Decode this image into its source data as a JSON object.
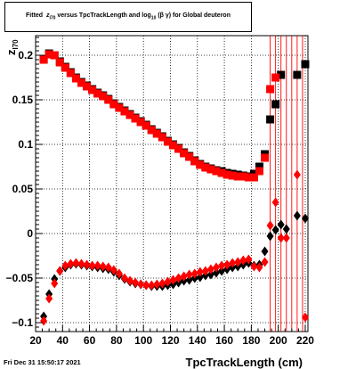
{
  "title_parts": {
    "prefix": "Fitted",
    "z_symbol": "z",
    "z_sub": "I70",
    "middle": "versus TpcTrackLength and log",
    "log_sub": "10",
    "suffix": "(β γ) for Global deuteron"
  },
  "footer": {
    "date": "Fri Dec 31 15:50:17 2021"
  },
  "chart_data": {
    "type": "scatter",
    "title": "Fitted z_I70 versus TpcTrackLength and log10(β γ) for Global deuteron",
    "xlabel": "TpcTrackLength (cm)",
    "ylabel": "z",
    "ylabel_sub": "I70",
    "xlim": [
      20,
      222
    ],
    "ylim": [
      -0.11,
      0.222
    ],
    "x_ticks": [
      20,
      40,
      60,
      80,
      100,
      120,
      140,
      160,
      180,
      200,
      220
    ],
    "y_ticks": [
      -0.1,
      -0.05,
      0,
      0.05,
      0.1,
      0.15,
      0.2
    ],
    "y_tick_labels": [
      "−0.1",
      "−0.05",
      "0",
      "0.05",
      "0.1",
      "0.15",
      "0.2"
    ],
    "grid": true,
    "grid_style": "dotted",
    "colors": {
      "series_black": "#000000",
      "series_red": "#ff0000"
    },
    "series": [
      {
        "marker": "square",
        "color": "#000000",
        "points": [
          [
            26,
            0.196
          ],
          [
            30,
            0.202
          ],
          [
            34,
            0.2
          ],
          [
            38,
            0.193
          ],
          [
            42,
            0.187
          ],
          [
            46,
            0.181
          ],
          [
            50,
            0.175
          ],
          [
            54,
            0.17
          ],
          [
            58,
            0.166
          ],
          [
            62,
            0.162
          ],
          [
            66,
            0.158
          ],
          [
            70,
            0.155
          ],
          [
            74,
            0.151
          ],
          [
            78,
            0.146
          ],
          [
            82,
            0.142
          ],
          [
            86,
            0.138
          ],
          [
            90,
            0.134
          ],
          [
            94,
            0.13
          ],
          [
            98,
            0.126
          ],
          [
            102,
            0.122
          ],
          [
            106,
            0.117
          ],
          [
            110,
            0.113
          ],
          [
            114,
            0.109
          ],
          [
            118,
            0.104
          ],
          [
            122,
            0.1
          ],
          [
            126,
            0.096
          ],
          [
            130,
            0.091
          ],
          [
            134,
            0.087
          ],
          [
            138,
            0.082
          ],
          [
            142,
            0.078
          ],
          [
            146,
            0.075
          ],
          [
            150,
            0.073
          ],
          [
            154,
            0.071
          ],
          [
            158,
            0.07
          ],
          [
            162,
            0.068
          ],
          [
            166,
            0.067
          ],
          [
            170,
            0.066
          ],
          [
            174,
            0.065
          ],
          [
            178,
            0.064
          ],
          [
            182,
            0.067
          ],
          [
            186,
            0.075
          ],
          [
            190,
            0.089
          ],
          [
            194,
            0.128
          ],
          [
            198,
            0.145
          ],
          [
            202,
            0.178
          ],
          [
            214,
            0.178
          ],
          [
            220,
            0.19
          ]
        ]
      },
      {
        "marker": "square",
        "color": "#ff0000",
        "points": [
          [
            26,
            0.195
          ],
          [
            30,
            0.201
          ],
          [
            34,
            0.2
          ],
          [
            38,
            0.192
          ],
          [
            42,
            0.186
          ],
          [
            46,
            0.18
          ],
          [
            50,
            0.174
          ],
          [
            54,
            0.169
          ],
          [
            58,
            0.165
          ],
          [
            62,
            0.161
          ],
          [
            66,
            0.157
          ],
          [
            70,
            0.154
          ],
          [
            74,
            0.15
          ],
          [
            78,
            0.145
          ],
          [
            82,
            0.141
          ],
          [
            86,
            0.137
          ],
          [
            90,
            0.133
          ],
          [
            94,
            0.129
          ],
          [
            98,
            0.125
          ],
          [
            102,
            0.121
          ],
          [
            106,
            0.116
          ],
          [
            110,
            0.112
          ],
          [
            114,
            0.108
          ],
          [
            118,
            0.103
          ],
          [
            122,
            0.099
          ],
          [
            126,
            0.095
          ],
          [
            130,
            0.09
          ],
          [
            134,
            0.086
          ],
          [
            138,
            0.081
          ],
          [
            142,
            0.077
          ],
          [
            146,
            0.074
          ],
          [
            150,
            0.072
          ],
          [
            154,
            0.07
          ],
          [
            158,
            0.068
          ],
          [
            162,
            0.066
          ],
          [
            166,
            0.065
          ],
          [
            170,
            0.064
          ],
          [
            174,
            0.064
          ],
          [
            178,
            0.063
          ],
          [
            182,
            0.063
          ],
          [
            186,
            0.07
          ],
          [
            190,
            0.085
          ],
          [
            194,
            0.162
          ],
          [
            198,
            0.175
          ]
        ]
      },
      {
        "marker": "diamond",
        "color": "#000000",
        "points": [
          [
            26,
            -0.093
          ],
          [
            30,
            -0.068
          ],
          [
            34,
            -0.051
          ],
          [
            38,
            -0.042
          ],
          [
            42,
            -0.038
          ],
          [
            46,
            -0.035
          ],
          [
            50,
            -0.034
          ],
          [
            54,
            -0.035
          ],
          [
            58,
            -0.036
          ],
          [
            62,
            -0.037
          ],
          [
            66,
            -0.038
          ],
          [
            70,
            -0.039
          ],
          [
            74,
            -0.04
          ],
          [
            78,
            -0.043
          ],
          [
            82,
            -0.047
          ],
          [
            86,
            -0.051
          ],
          [
            90,
            -0.054
          ],
          [
            94,
            -0.056
          ],
          [
            98,
            -0.057
          ],
          [
            102,
            -0.058
          ],
          [
            106,
            -0.059
          ],
          [
            110,
            -0.059
          ],
          [
            114,
            -0.059
          ],
          [
            118,
            -0.058
          ],
          [
            122,
            -0.057
          ],
          [
            126,
            -0.055
          ],
          [
            130,
            -0.053
          ],
          [
            134,
            -0.052
          ],
          [
            138,
            -0.05
          ],
          [
            142,
            -0.049
          ],
          [
            146,
            -0.047
          ],
          [
            150,
            -0.046
          ],
          [
            154,
            -0.044
          ],
          [
            158,
            -0.042
          ],
          [
            162,
            -0.04
          ],
          [
            166,
            -0.038
          ],
          [
            170,
            -0.037
          ],
          [
            174,
            -0.035
          ],
          [
            178,
            -0.033
          ],
          [
            182,
            -0.036
          ],
          [
            186,
            -0.035
          ],
          [
            190,
            -0.02
          ],
          [
            194,
            -0.003
          ],
          [
            198,
            0.004
          ],
          [
            202,
            0.01
          ],
          [
            206,
            0.005
          ],
          [
            214,
            0.02
          ],
          [
            220,
            0.017
          ]
        ]
      },
      {
        "marker": "diamond",
        "color": "#ff0000",
        "points": [
          [
            26,
            -0.098
          ],
          [
            30,
            -0.073
          ],
          [
            34,
            -0.056
          ],
          [
            38,
            -0.042
          ],
          [
            42,
            -0.036
          ],
          [
            46,
            -0.034
          ],
          [
            50,
            -0.033
          ],
          [
            54,
            -0.034
          ],
          [
            58,
            -0.035
          ],
          [
            62,
            -0.036
          ],
          [
            66,
            -0.036
          ],
          [
            70,
            -0.037
          ],
          [
            74,
            -0.038
          ],
          [
            78,
            -0.041
          ],
          [
            82,
            -0.045
          ],
          [
            86,
            -0.05
          ],
          [
            90,
            -0.053
          ],
          [
            94,
            -0.055
          ],
          [
            98,
            -0.057
          ],
          [
            102,
            -0.058
          ],
          [
            106,
            -0.058
          ],
          [
            110,
            -0.057
          ],
          [
            114,
            -0.056
          ],
          [
            118,
            -0.054
          ],
          [
            122,
            -0.052
          ],
          [
            126,
            -0.05
          ],
          [
            130,
            -0.048
          ],
          [
            134,
            -0.046
          ],
          [
            138,
            -0.045
          ],
          [
            142,
            -0.043
          ],
          [
            146,
            -0.042
          ],
          [
            150,
            -0.04
          ],
          [
            154,
            -0.038
          ],
          [
            158,
            -0.036
          ],
          [
            162,
            -0.035
          ],
          [
            166,
            -0.033
          ],
          [
            170,
            -0.032
          ],
          [
            174,
            -0.03
          ],
          [
            178,
            -0.029
          ],
          [
            182,
            -0.037
          ],
          [
            186,
            -0.038
          ],
          [
            190,
            -0.032
          ],
          [
            194,
            0.009
          ],
          [
            198,
            0.035
          ],
          [
            202,
            -0.005
          ],
          [
            206,
            -0.005
          ],
          [
            214,
            0.066
          ],
          [
            220,
            -0.094
          ]
        ]
      }
    ],
    "error_bar_x": [
      194,
      198,
      202,
      206,
      210,
      214,
      218
    ]
  }
}
